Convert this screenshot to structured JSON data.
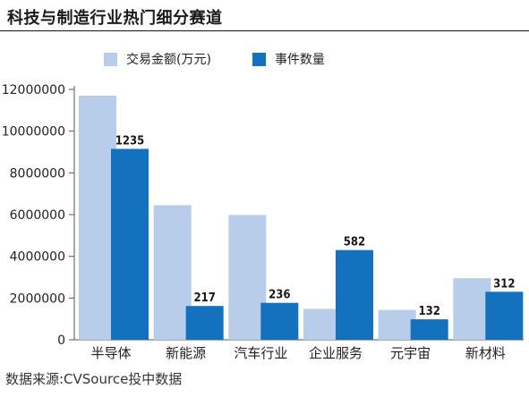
{
  "chart_data": {
    "type": "bar",
    "title": "科技与制造行业热门细分赛道",
    "categories": [
      "半导体",
      "新能源",
      "汽车行业",
      "企业服务",
      "元宇宙",
      "新材料"
    ],
    "series": [
      {
        "name": "交易金额(万元)",
        "color": "#b7cdea",
        "values": [
          11700000,
          6450000,
          5980000,
          1480000,
          1430000,
          2950000
        ]
      },
      {
        "name": "事件数量",
        "color": "#1471bd",
        "values": [
          9150000,
          1620000,
          1770000,
          4300000,
          980000,
          2300000
        ],
        "labels": [
          "1235",
          "217",
          "236",
          "582",
          "132",
          "312"
        ]
      }
    ],
    "ylim": [
      0,
      12000000
    ],
    "yticks": [
      "0",
      "2000000",
      "4000000",
      "6000000",
      "8000000",
      "10000000",
      "12000000"
    ],
    "grid": false,
    "legend": "top",
    "source": "数据来源:CVSource投中数据"
  }
}
